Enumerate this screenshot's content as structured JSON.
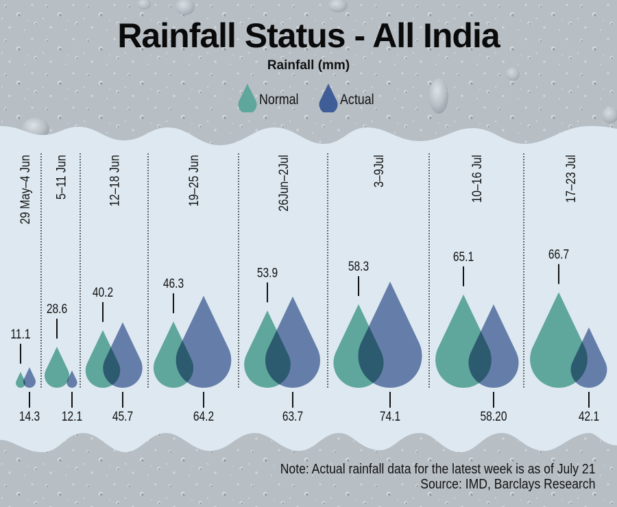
{
  "header": {
    "title": "Rainfall Status - All India",
    "subtitle": "Rainfall (mm)"
  },
  "legend": {
    "normal": {
      "label": "Normal",
      "color": "#5fa69c"
    },
    "actual": {
      "label": "Actual",
      "color": "#3f5d97"
    }
  },
  "footer": {
    "note": "Note: Actual rainfall data for the latest week is as of July 21",
    "source": "Source: IMD, Barclays Research"
  },
  "chart_data": {
    "type": "bar",
    "title": "Rainfall Status - All India",
    "ylabel": "Rainfall (mm)",
    "categories": [
      "29 May–4 Jun",
      "5–11 Jun",
      "12–18 Jun",
      "19–25 Jun",
      "26Jun–2Jul",
      "3–9Jul",
      "10–16 Jul",
      "17–23 Jul"
    ],
    "series": [
      {
        "name": "Normal",
        "color": "#5fa69c",
        "values": [
          11.1,
          28.6,
          40.2,
          46.3,
          53.9,
          58.3,
          65.1,
          66.7
        ],
        "labels": [
          "11.1",
          "28.6",
          "40.2",
          "46.3",
          "53.9",
          "58.3",
          "65.1",
          "66.7"
        ]
      },
      {
        "name": "Actual",
        "color": "#3f5d97",
        "values": [
          14.3,
          12.1,
          45.7,
          64.2,
          63.7,
          74.1,
          58.2,
          42.1
        ],
        "labels": [
          "14.3",
          "12.1",
          "45.7",
          "64.2",
          "63.7",
          "74.1",
          "58.20",
          "42.1"
        ]
      }
    ],
    "legend_position": "top-center",
    "grid": false
  }
}
